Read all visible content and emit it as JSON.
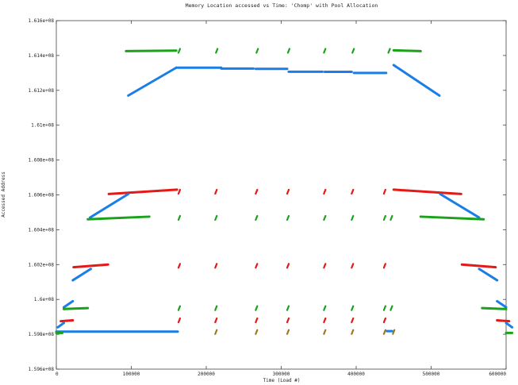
{
  "chart_data": {
    "type": "scatter",
    "title": "Memory Location accessed vs Time: 'Chomp' with Pool Allocation",
    "xlabel": "Time (Load #)",
    "ylabel": "Accessed Address",
    "xlim": [
      0,
      600000
    ],
    "ylim": [
      159600000,
      161600000
    ],
    "x_ticks": [
      0,
      100000,
      200000,
      300000,
      400000,
      500000,
      600000
    ],
    "x_tick_labels": [
      "0",
      "100000",
      "200000",
      "300000",
      "400000",
      "500000",
      "600000"
    ],
    "y_ticks": [
      159600000,
      159800000,
      160000000,
      160200000,
      160400000,
      160600000,
      160800000,
      161000000,
      161200000,
      161400000,
      161600000
    ],
    "y_tick_labels": [
      "1.596e+08",
      "1.598e+08",
      "1.6e+08",
      "1.602e+08",
      "1.604e+08",
      "1.606e+08",
      "1.608e+08",
      "1.61e+08",
      "1.612e+08",
      "1.614e+08",
      "1.616e+08"
    ],
    "grid": false,
    "series_colors": {
      "blue": "#1a7ee6",
      "red": "#e41a1a",
      "green": "#1aa31a",
      "olive": "#9c7a1a"
    },
    "segments": [
      {
        "color": "blue",
        "x0": 96000,
        "y0": 161170000,
        "x1": 160000,
        "y1": 161330000
      },
      {
        "color": "blue",
        "x0": 160000,
        "y0": 161330000,
        "x1": 220000,
        "y1": 161330000
      },
      {
        "color": "blue",
        "x0": 220000,
        "y0": 161325000,
        "x1": 263000,
        "y1": 161325000
      },
      {
        "color": "blue",
        "x0": 266000,
        "y0": 161323000,
        "x1": 308000,
        "y1": 161323000
      },
      {
        "color": "blue",
        "x0": 310000,
        "y0": 161307000,
        "x1": 355000,
        "y1": 161307000
      },
      {
        "color": "blue",
        "x0": 358000,
        "y0": 161306000,
        "x1": 394000,
        "y1": 161306000
      },
      {
        "color": "blue",
        "x0": 397000,
        "y0": 161300000,
        "x1": 440000,
        "y1": 161300000
      },
      {
        "color": "blue",
        "x0": 450000,
        "y0": 161345000,
        "x1": 511000,
        "y1": 161170000
      },
      {
        "color": "green",
        "x0": 93000,
        "y0": 161425000,
        "x1": 160000,
        "y1": 161428000
      },
      {
        "color": "green",
        "x0": 450000,
        "y0": 161430000,
        "x1": 486000,
        "y1": 161425000
      },
      {
        "color": "red",
        "x0": 70000,
        "y0": 160605000,
        "x1": 161000,
        "y1": 160630000
      },
      {
        "color": "red",
        "x0": 450000,
        "y0": 160630000,
        "x1": 540000,
        "y1": 160605000
      },
      {
        "color": "blue",
        "x0": 45000,
        "y0": 160470000,
        "x1": 96000,
        "y1": 160605000
      },
      {
        "color": "blue",
        "x0": 512000,
        "y0": 160605000,
        "x1": 564000,
        "y1": 160470000
      },
      {
        "color": "green",
        "x0": 42000,
        "y0": 160460000,
        "x1": 124000,
        "y1": 160475000
      },
      {
        "color": "green",
        "x0": 486000,
        "y0": 160475000,
        "x1": 570000,
        "y1": 160460000
      },
      {
        "color": "red",
        "x0": 23000,
        "y0": 160185000,
        "x1": 69000,
        "y1": 160200000
      },
      {
        "color": "red",
        "x0": 541000,
        "y0": 160200000,
        "x1": 586000,
        "y1": 160185000
      },
      {
        "color": "blue",
        "x0": 22000,
        "y0": 160110000,
        "x1": 46000,
        "y1": 160175000
      },
      {
        "color": "blue",
        "x0": 564000,
        "y0": 160175000,
        "x1": 588000,
        "y1": 160110000
      },
      {
        "color": "blue",
        "x0": 10000,
        "y0": 159955000,
        "x1": 22000,
        "y1": 159990000
      },
      {
        "color": "blue",
        "x0": 588000,
        "y0": 159990000,
        "x1": 600000,
        "y1": 159955000
      },
      {
        "color": "green",
        "x0": 10000,
        "y0": 159945000,
        "x1": 42000,
        "y1": 159950000
      },
      {
        "color": "green",
        "x0": 568000,
        "y0": 159950000,
        "x1": 600000,
        "y1": 159945000
      },
      {
        "color": "red",
        "x0": 6000,
        "y0": 159875000,
        "x1": 22000,
        "y1": 159880000
      },
      {
        "color": "red",
        "x0": 588000,
        "y0": 159880000,
        "x1": 604000,
        "y1": 159875000
      },
      {
        "color": "blue",
        "x0": 2000,
        "y0": 159840000,
        "x1": 10000,
        "y1": 159865000
      },
      {
        "color": "blue",
        "x0": 600000,
        "y0": 159865000,
        "x1": 608000,
        "y1": 159840000
      },
      {
        "color": "blue",
        "x0": 0,
        "y0": 159815000,
        "x1": 162000,
        "y1": 159815000
      },
      {
        "color": "green",
        "x0": 0,
        "y0": 159808000,
        "x1": 8000,
        "y1": 159808000
      },
      {
        "color": "green",
        "x0": 600000,
        "y0": 159808000,
        "x1": 608000,
        "y1": 159808000
      },
      {
        "color": "blue",
        "x0": 441000,
        "y0": 159818000,
        "x1": 448000,
        "y1": 159818000
      }
    ],
    "marks": [
      {
        "color": "green",
        "x": 164000,
        "y": 161427000
      },
      {
        "color": "green",
        "x": 214000,
        "y": 161427000
      },
      {
        "color": "green",
        "x": 268000,
        "y": 161427000
      },
      {
        "color": "green",
        "x": 310000,
        "y": 161427000
      },
      {
        "color": "green",
        "x": 358000,
        "y": 161427000
      },
      {
        "color": "green",
        "x": 396000,
        "y": 161427000
      },
      {
        "color": "green",
        "x": 444000,
        "y": 161427000
      },
      {
        "color": "red",
        "x": 164000,
        "y": 160618000
      },
      {
        "color": "red",
        "x": 213000,
        "y": 160618000
      },
      {
        "color": "red",
        "x": 267000,
        "y": 160618000
      },
      {
        "color": "red",
        "x": 309000,
        "y": 160618000
      },
      {
        "color": "red",
        "x": 358000,
        "y": 160618000
      },
      {
        "color": "red",
        "x": 395000,
        "y": 160618000
      },
      {
        "color": "red",
        "x": 438000,
        "y": 160618000
      },
      {
        "color": "green",
        "x": 164000,
        "y": 160468000
      },
      {
        "color": "green",
        "x": 213000,
        "y": 160468000
      },
      {
        "color": "green",
        "x": 267000,
        "y": 160468000
      },
      {
        "color": "green",
        "x": 309000,
        "y": 160468000
      },
      {
        "color": "green",
        "x": 358000,
        "y": 160468000
      },
      {
        "color": "green",
        "x": 395000,
        "y": 160468000
      },
      {
        "color": "green",
        "x": 438000,
        "y": 160468000
      },
      {
        "color": "green",
        "x": 447000,
        "y": 160468000
      },
      {
        "color": "red",
        "x": 164000,
        "y": 160193000
      },
      {
        "color": "red",
        "x": 213000,
        "y": 160193000
      },
      {
        "color": "red",
        "x": 267000,
        "y": 160193000
      },
      {
        "color": "red",
        "x": 309000,
        "y": 160193000
      },
      {
        "color": "red",
        "x": 358000,
        "y": 160193000
      },
      {
        "color": "red",
        "x": 395000,
        "y": 160193000
      },
      {
        "color": "red",
        "x": 438000,
        "y": 160193000
      },
      {
        "color": "green",
        "x": 164000,
        "y": 159950000
      },
      {
        "color": "green",
        "x": 213000,
        "y": 159950000
      },
      {
        "color": "green",
        "x": 267000,
        "y": 159950000
      },
      {
        "color": "green",
        "x": 309000,
        "y": 159950000
      },
      {
        "color": "green",
        "x": 358000,
        "y": 159950000
      },
      {
        "color": "green",
        "x": 395000,
        "y": 159950000
      },
      {
        "color": "green",
        "x": 438000,
        "y": 159950000
      },
      {
        "color": "green",
        "x": 447000,
        "y": 159950000
      },
      {
        "color": "red",
        "x": 164000,
        "y": 159880000
      },
      {
        "color": "red",
        "x": 213000,
        "y": 159880000
      },
      {
        "color": "red",
        "x": 267000,
        "y": 159880000
      },
      {
        "color": "red",
        "x": 309000,
        "y": 159880000
      },
      {
        "color": "red",
        "x": 358000,
        "y": 159880000
      },
      {
        "color": "red",
        "x": 395000,
        "y": 159880000
      },
      {
        "color": "red",
        "x": 438000,
        "y": 159880000
      },
      {
        "color": "olive",
        "x": 213000,
        "y": 159813000
      },
      {
        "color": "olive",
        "x": 267000,
        "y": 159813000
      },
      {
        "color": "olive",
        "x": 309000,
        "y": 159813000
      },
      {
        "color": "olive",
        "x": 358000,
        "y": 159813000
      },
      {
        "color": "olive",
        "x": 395000,
        "y": 159813000
      },
      {
        "color": "olive",
        "x": 438000,
        "y": 159813000
      },
      {
        "color": "olive",
        "x": 450000,
        "y": 159813000
      }
    ]
  }
}
